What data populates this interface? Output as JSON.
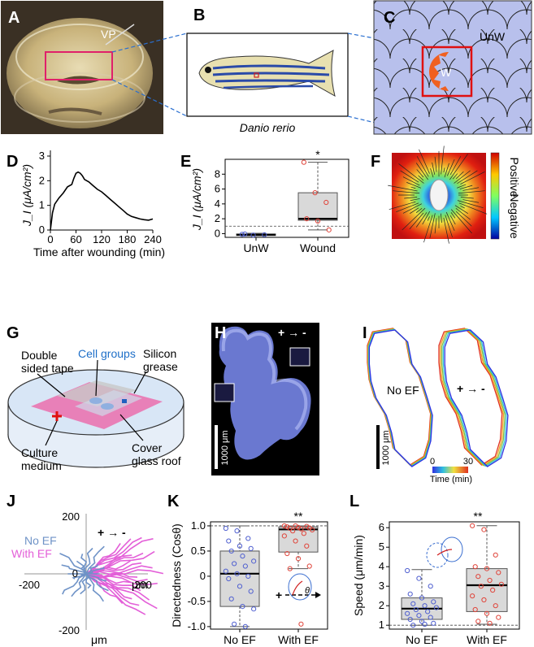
{
  "panels": {
    "A": {
      "letter": "A",
      "vp": "VP"
    },
    "B": {
      "letter": "B",
      "caption": "Danio rerio"
    },
    "C": {
      "letter": "C",
      "unw": "UnW",
      "w": "W"
    },
    "D": {
      "letter": "D"
    },
    "E": {
      "letter": "E",
      "star": "*"
    },
    "F": {
      "letter": "F",
      "positive": "Positive",
      "negative": "Negative"
    },
    "G": {
      "letter": "G",
      "double_sided_tape": [
        "Double",
        "sided tape"
      ],
      "cell_groups": "Cell groups",
      "silicon_grease": [
        "Silicon",
        "grease"
      ],
      "culture_medium": [
        "Culture",
        "medium"
      ],
      "cover_glass": [
        "Cover",
        "glass roof"
      ]
    },
    "H": {
      "letter": "H",
      "scale": "1000 μm",
      "polarity": "+ → -"
    },
    "I": {
      "letter": "I",
      "no_ef": "No EF",
      "polarity": "+ → -",
      "scale": "1000 μm",
      "time_label": "Time (min)",
      "time_min": "0",
      "time_max": "30"
    },
    "J": {
      "letter": "J",
      "no_ef": "No EF",
      "with_ef": "With EF",
      "polarity": "+ → -",
      "um_x": "μm",
      "um_y": "μm"
    },
    "K": {
      "letter": "K",
      "star": "**"
    },
    "L": {
      "letter": "L",
      "star": "**"
    }
  },
  "colors": {
    "no_ef": "#6f93c7",
    "with_ef": "#e35fd8",
    "box_fill": "#d9d9d9",
    "red_pt": "#e0443a",
    "blue_pt": "#4f5fd0"
  },
  "chart_data": [
    {
      "id": "D",
      "type": "line",
      "xlabel": "Time after wounding (min)",
      "ylabel": "J_I (μA/cm²)",
      "xlim": [
        0,
        240
      ],
      "ylim": [
        0,
        3
      ],
      "xticks": [
        0,
        60,
        120,
        180,
        240
      ],
      "yticks": [
        0,
        1,
        2,
        3
      ],
      "x": [
        0,
        5,
        10,
        20,
        30,
        40,
        50,
        55,
        60,
        65,
        70,
        75,
        80,
        90,
        100,
        110,
        120,
        130,
        140,
        150,
        160,
        170,
        180,
        190,
        200,
        210,
        220,
        230,
        240
      ],
      "y": [
        0,
        0.7,
        1.05,
        1.3,
        1.5,
        1.75,
        1.85,
        2.1,
        2.3,
        2.35,
        2.3,
        2.2,
        2.05,
        1.95,
        1.8,
        1.65,
        1.55,
        1.4,
        1.25,
        1.1,
        0.95,
        0.8,
        0.65,
        0.55,
        0.5,
        0.45,
        0.42,
        0.4,
        0.45
      ]
    },
    {
      "id": "E",
      "type": "box",
      "ylabel": "J_I (μA/cm²)",
      "ylim": [
        -0.5,
        10
      ],
      "yticks": [
        0,
        2,
        4,
        6,
        8
      ],
      "reference_line": 1,
      "categories": [
        "UnW",
        "Wound"
      ],
      "boxes": [
        {
          "min": -0.3,
          "q1": -0.25,
          "median": -0.15,
          "q3": -0.05,
          "max": 0.05,
          "points": [
            -0.1,
            -0.2,
            -0.15,
            -0.05
          ]
        },
        {
          "min": 0.5,
          "q1": 1.8,
          "median": 2.0,
          "q3": 5.5,
          "max": 9.6,
          "points": [
            9.6,
            5.5,
            4.2,
            2.0,
            1.7,
            0.5
          ]
        }
      ]
    },
    {
      "id": "K",
      "type": "box",
      "ylabel": "Directedness (Cosθ)",
      "ylim": [
        -1.05,
        1.08
      ],
      "yticks": [
        -1.0,
        -0.5,
        0,
        0.5,
        1.0
      ],
      "ytick_labels": [
        "-1.0",
        "-0.5",
        "0",
        "0.5",
        "1.0"
      ],
      "reference_line": 1,
      "categories": [
        "No EF",
        "With EF"
      ],
      "boxes": [
        {
          "min": -1.0,
          "q1": -0.6,
          "median": 0.05,
          "q3": 0.5,
          "max": 1.0,
          "points": [
            0.95,
            0.9,
            0.75,
            0.7,
            0.6,
            0.55,
            0.5,
            0.4,
            0.3,
            0.25,
            0.2,
            0.1,
            0.05,
            0.0,
            -0.05,
            -0.2,
            -0.3,
            -0.45,
            -0.6,
            -0.65,
            -0.95,
            -1.0
          ]
        },
        {
          "min": 0.15,
          "q1": 0.48,
          "median": 0.93,
          "q3": 0.98,
          "max": 1.0,
          "points": [
            1.0,
            1.0,
            0.99,
            0.98,
            0.97,
            0.96,
            0.95,
            0.94,
            0.92,
            0.9,
            0.85,
            0.8,
            0.7,
            0.6,
            0.45,
            0.35,
            0.2,
            0.15,
            -0.95
          ]
        }
      ]
    },
    {
      "id": "L",
      "type": "box",
      "ylabel": "Speed (μm/min)",
      "ylim": [
        0.8,
        6.3
      ],
      "yticks": [
        1,
        2,
        3,
        4,
        5,
        6
      ],
      "reference_line": 1,
      "categories": [
        "No EF",
        "With EF"
      ],
      "boxes": [
        {
          "min": 1.0,
          "q1": 1.3,
          "median": 1.85,
          "q3": 2.4,
          "max": 3.85,
          "points": [
            3.8,
            3.4,
            3.0,
            2.6,
            2.4,
            2.2,
            2.1,
            2.0,
            1.9,
            1.8,
            1.7,
            1.6,
            1.5,
            1.4,
            1.3,
            1.2,
            1.1,
            1.0,
            1.05
          ]
        },
        {
          "min": 1.05,
          "q1": 1.7,
          "median": 3.05,
          "q3": 3.9,
          "max": 6.1,
          "points": [
            6.1,
            5.9,
            4.6,
            4.0,
            3.9,
            3.7,
            3.5,
            3.3,
            3.1,
            3.0,
            2.8,
            2.5,
            2.3,
            2.0,
            1.8,
            1.6,
            1.4,
            1.2,
            1.1
          ]
        }
      ]
    },
    {
      "id": "J",
      "type": "scatter",
      "xticks": [
        -200,
        0,
        200
      ],
      "yticks": [
        200,
        0,
        -200
      ],
      "xlim": [
        -200,
        200
      ],
      "ylim": [
        -200,
        200
      ],
      "series": [
        {
          "name": "No EF"
        },
        {
          "name": "With EF"
        }
      ]
    }
  ]
}
